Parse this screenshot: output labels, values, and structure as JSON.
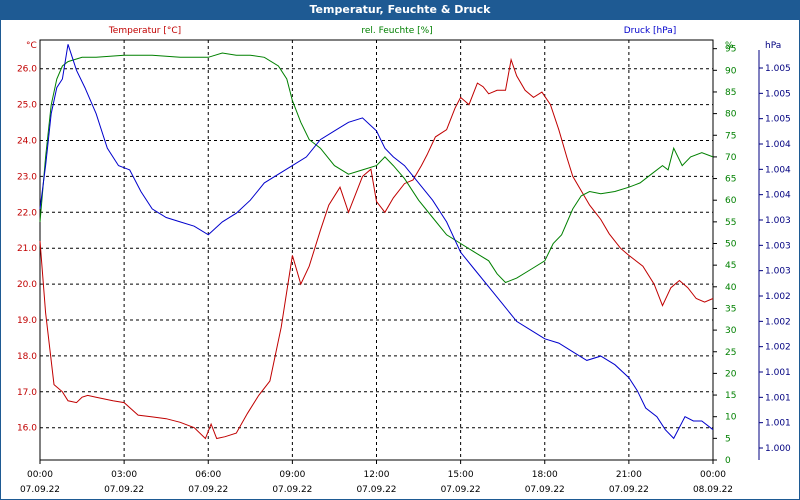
{
  "window": {
    "title": "Temperatur, Feuchte & Druck"
  },
  "chart_data": {
    "type": "line",
    "x_ticks": [
      {
        "time": "00:00",
        "date": "07.09.22"
      },
      {
        "time": "03:00",
        "date": "07.09.22"
      },
      {
        "time": "06:00",
        "date": "07.09.22"
      },
      {
        "time": "09:00",
        "date": "07.09.22"
      },
      {
        "time": "12:00",
        "date": "07.09.22"
      },
      {
        "time": "15:00",
        "date": "07.09.22"
      },
      {
        "time": "18:00",
        "date": "07.09.22"
      },
      {
        "time": "21:00",
        "date": "07.09.22"
      },
      {
        "time": "00:00",
        "date": "08.09.22"
      }
    ],
    "xlim_hours": [
      0,
      24
    ],
    "grid": true,
    "axes": {
      "temperature": {
        "unit": "°C",
        "ylim": [
          15.1,
          26.8
        ],
        "ticks": [
          "16.0",
          "17.0",
          "18.0",
          "19.0",
          "20.0",
          "21.0",
          "22.0",
          "23.0",
          "24.0",
          "25.0",
          "26.0"
        ]
      },
      "humidity": {
        "unit": "%",
        "ylim": [
          0,
          97
        ],
        "ticks": [
          "0",
          "5",
          "10",
          "15",
          "20",
          "25",
          "30",
          "35",
          "40",
          "45",
          "50",
          "55",
          "60",
          "65",
          "70",
          "75",
          "80",
          "85",
          "90",
          "95"
        ]
      },
      "pressure": {
        "unit": "hPa",
        "ticks": [
          "1.000",
          "1.001",
          "1.001",
          "1.001",
          "1.002",
          "1.002",
          "1.002",
          "1.003",
          "1.003",
          "1.003",
          "1.004",
          "1.004",
          "1.004",
          "1.005",
          "1.005",
          "1.005"
        ]
      }
    },
    "series": [
      {
        "name": "Temperatur [°C]",
        "color": "#c00000",
        "axis": "temperature",
        "hours": [
          0,
          0.2,
          0.5,
          0.8,
          1,
          1.3,
          1.5,
          1.7,
          2,
          2.3,
          2.6,
          3,
          3.5,
          4,
          4.5,
          5,
          5.5,
          5.9,
          6.1,
          6.3,
          6.6,
          7,
          7.4,
          7.8,
          8.2,
          8.6,
          9,
          9.3,
          9.6,
          10,
          10.3,
          10.7,
          11,
          11.5,
          11.8,
          12,
          12.3,
          12.6,
          13,
          13.3,
          13.6,
          13.8,
          14.1,
          14.5,
          14.8,
          15,
          15.3,
          15.6,
          15.8,
          16,
          16.3,
          16.6,
          16.8,
          17,
          17.3,
          17.6,
          17.9,
          18.2,
          18.5,
          18.8,
          19,
          19.3,
          19.6,
          20,
          20.3,
          20.7,
          21,
          21.5,
          21.9,
          22.2,
          22.5,
          22.8,
          23.1,
          23.4,
          23.7,
          24
        ],
        "values": [
          21.2,
          19.2,
          17.2,
          17.0,
          16.75,
          16.7,
          16.85,
          16.9,
          16.85,
          16.8,
          16.75,
          16.7,
          16.35,
          16.3,
          16.25,
          16.15,
          16.0,
          15.7,
          16.1,
          15.7,
          15.75,
          15.85,
          16.4,
          16.9,
          17.3,
          18.8,
          20.8,
          20.0,
          20.5,
          21.5,
          22.2,
          22.7,
          22.0,
          23.0,
          23.2,
          22.3,
          22.0,
          22.4,
          22.8,
          22.9,
          23.3,
          23.6,
          24.1,
          24.3,
          24.9,
          25.2,
          25.0,
          25.6,
          25.5,
          25.3,
          25.4,
          25.4,
          26.25,
          25.8,
          25.4,
          25.2,
          25.35,
          25.0,
          24.3,
          23.5,
          23.0,
          22.6,
          22.2,
          21.8,
          21.4,
          21.0,
          20.8,
          20.5,
          20.0,
          19.4,
          19.9,
          20.1,
          19.9,
          19.6,
          19.5,
          19.6
        ]
      },
      {
        "name": "rel. Feuchte [%]",
        "color": "#008000",
        "axis": "humidity",
        "hours": [
          0,
          0.2,
          0.4,
          0.6,
          0.8,
          1,
          1.5,
          2,
          3,
          4,
          5,
          6,
          6.5,
          7,
          7.5,
          8,
          8.5,
          8.8,
          9,
          9.3,
          9.6,
          10,
          10.5,
          11,
          11.5,
          12,
          12.3,
          12.6,
          13,
          13.5,
          14,
          14.5,
          15,
          15.5,
          16,
          16.3,
          16.6,
          17,
          17.5,
          18,
          18.3,
          18.6,
          19,
          19.3,
          19.6,
          20,
          20.5,
          21,
          21.4,
          21.8,
          22.2,
          22.4,
          22.6,
          22.9,
          23.2,
          23.6,
          24
        ],
        "values": [
          55,
          70,
          82,
          88,
          91,
          92,
          93,
          93,
          93.5,
          93.5,
          93,
          93,
          94,
          93.5,
          93.5,
          93,
          91,
          88,
          83,
          78,
          74,
          72,
          68,
          66,
          67,
          68,
          70,
          68,
          65,
          60,
          56,
          52,
          50,
          48,
          46,
          43,
          41,
          42,
          44,
          46,
          50,
          52,
          58,
          61,
          62,
          61.5,
          62,
          63,
          64,
          66,
          68,
          67,
          72,
          68,
          70,
          71,
          70
        ]
      },
      {
        "name": "Druck [hPa]",
        "color": "#0000cc",
        "axis": "humidity",
        "hours": [
          0,
          0.2,
          0.4,
          0.6,
          0.8,
          1,
          1.3,
          1.6,
          2,
          2.4,
          2.8,
          3.2,
          3.6,
          4,
          4.5,
          5,
          5.5,
          6,
          6.5,
          7,
          7.5,
          8,
          8.5,
          9,
          9.5,
          10,
          10.5,
          11,
          11.5,
          12,
          12.3,
          12.6,
          13,
          13.5,
          14,
          14.5,
          15,
          15.5,
          16,
          16.5,
          17,
          17.5,
          18,
          18.5,
          19,
          19.5,
          20,
          20.5,
          21,
          21.3,
          21.6,
          22,
          22.3,
          22.6,
          23,
          23.3,
          23.6,
          24
        ],
        "values": [
          58,
          68,
          80,
          86,
          88,
          96,
          90,
          86,
          80,
          72,
          68,
          67,
          62,
          58,
          56,
          55,
          54,
          52,
          55,
          57,
          60,
          64,
          66,
          68,
          70,
          74,
          76,
          78,
          79,
          76,
          72,
          70,
          68,
          64,
          60,
          55,
          48,
          44,
          40,
          36,
          32,
          30,
          28,
          27,
          25,
          23,
          24,
          22,
          19,
          16,
          12,
          10,
          7,
          5,
          10,
          9,
          9,
          7
        ]
      }
    ]
  }
}
